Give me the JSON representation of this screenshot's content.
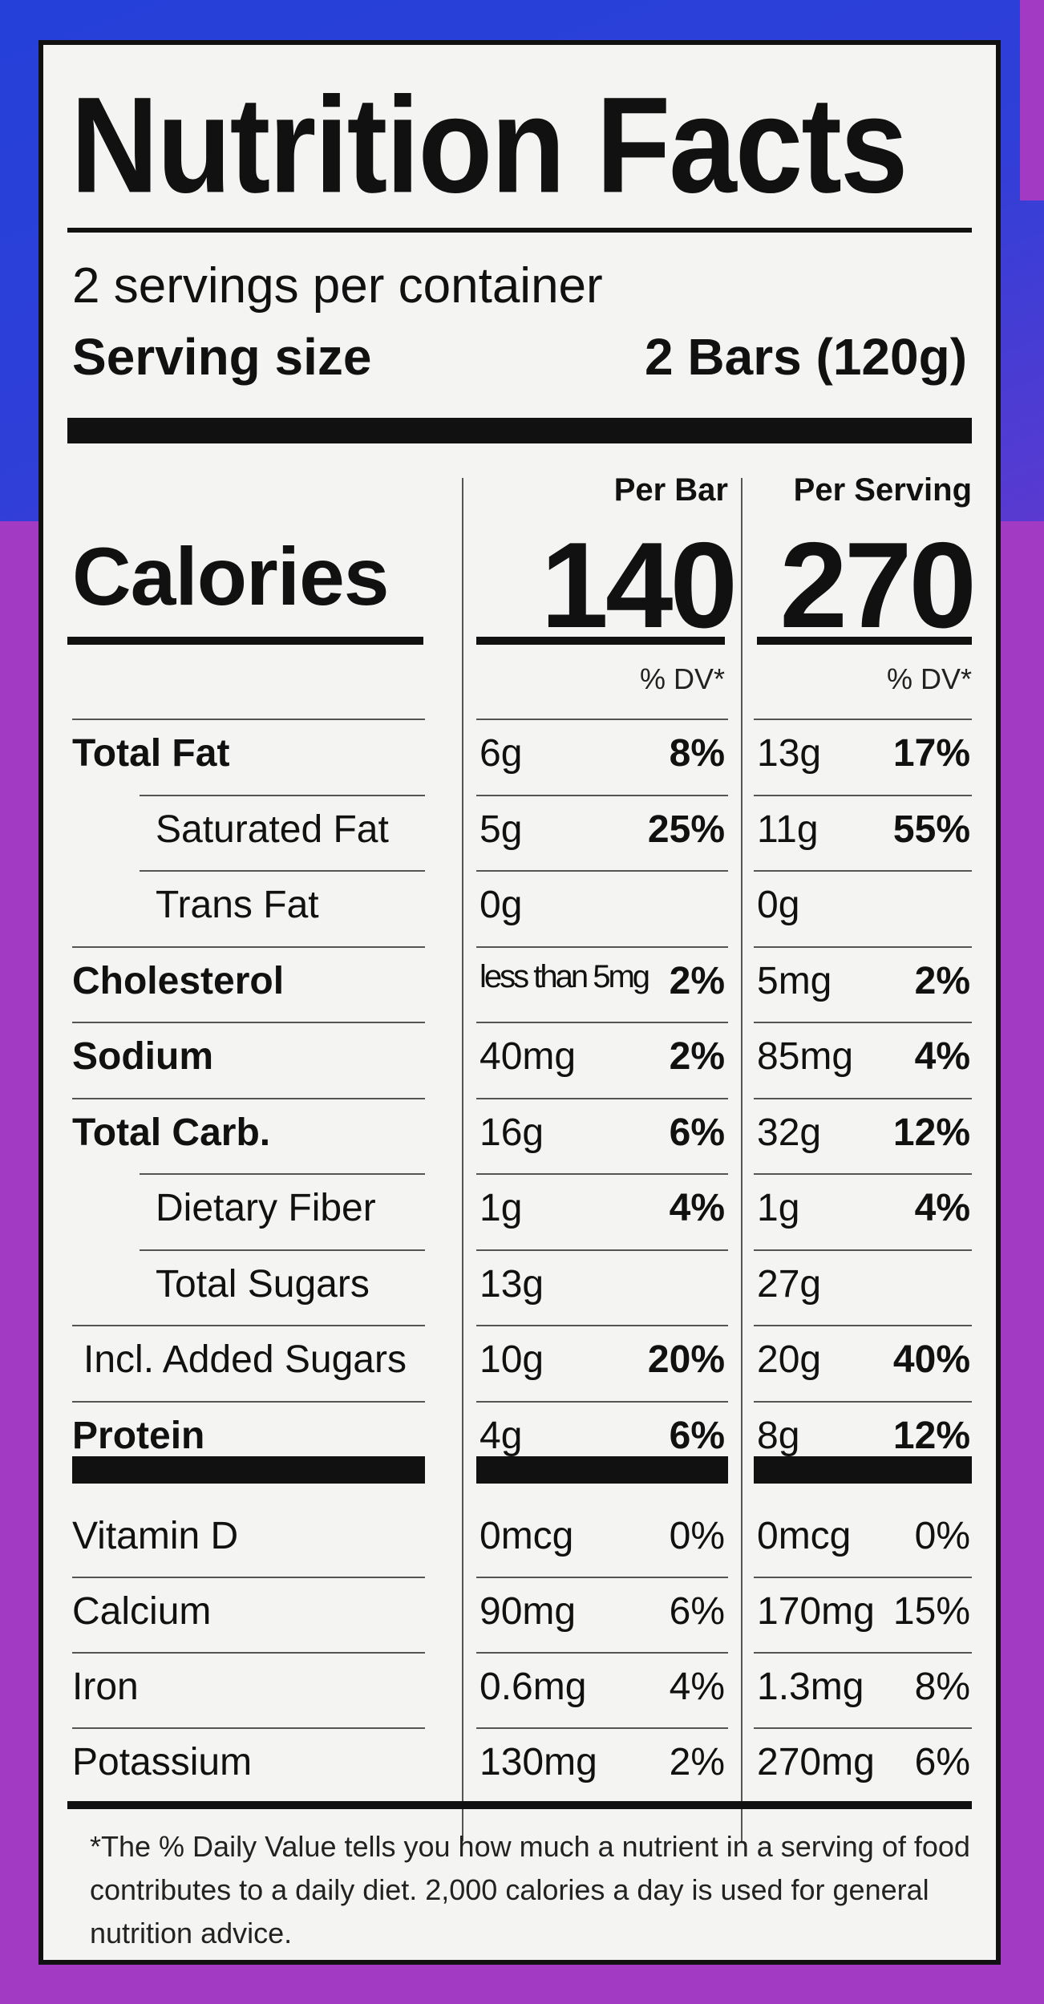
{
  "title": "Nutrition Facts",
  "servings_per_container": "2 servings per container",
  "serving_size_label": "Serving size",
  "serving_size_value": "2 Bars (120g)",
  "col_per_bar": "Per Bar",
  "col_per_serving": "Per Serving",
  "calories_label": "Calories",
  "calories_per_bar": "140",
  "calories_per_serving": "270",
  "dv_header": "% DV*",
  "nutrients": [
    {
      "label": "Total Fat",
      "bar_amt": "6g",
      "bar_pct": "8%",
      "srv_amt": "13g",
      "srv_pct": "17%"
    },
    {
      "label": "Saturated Fat",
      "bar_amt": "5g",
      "bar_pct": "25%",
      "srv_amt": "11g",
      "srv_pct": "55%"
    },
    {
      "label": "Trans Fat",
      "bar_amt": "0g",
      "bar_pct": "",
      "srv_amt": "0g",
      "srv_pct": ""
    },
    {
      "label": "Cholesterol",
      "bar_amt": "less than 5mg",
      "bar_pct": "2%",
      "srv_amt": "5mg",
      "srv_pct": "2%"
    },
    {
      "label": "Sodium",
      "bar_amt": "40mg",
      "bar_pct": "2%",
      "srv_amt": "85mg",
      "srv_pct": "4%"
    },
    {
      "label": "Total Carb.",
      "bar_amt": "16g",
      "bar_pct": "6%",
      "srv_amt": "32g",
      "srv_pct": "12%"
    },
    {
      "label": "Dietary Fiber",
      "bar_amt": "1g",
      "bar_pct": "4%",
      "srv_amt": "1g",
      "srv_pct": "4%"
    },
    {
      "label": "Total Sugars",
      "bar_amt": "13g",
      "bar_pct": "",
      "srv_amt": "27g",
      "srv_pct": ""
    },
    {
      "label": "Incl. Added Sugars",
      "bar_amt": "10g",
      "bar_pct": "20%",
      "srv_amt": "20g",
      "srv_pct": "40%"
    },
    {
      "label": "Protein",
      "bar_amt": "4g",
      "bar_pct": "6%",
      "srv_amt": "8g",
      "srv_pct": "12%"
    }
  ],
  "vitamins": [
    {
      "label": "Vitamin D",
      "bar_amt": "0mcg",
      "bar_pct": "0%",
      "srv_amt": "0mcg",
      "srv_pct": "0%"
    },
    {
      "label": "Calcium",
      "bar_amt": "90mg",
      "bar_pct": "6%",
      "srv_amt": "170mg",
      "srv_pct": "15%"
    },
    {
      "label": "Iron",
      "bar_amt": "0.6mg",
      "bar_pct": "4%",
      "srv_amt": "1.3mg",
      "srv_pct": "8%"
    },
    {
      "label": "Potassium",
      "bar_amt": "130mg",
      "bar_pct": "2%",
      "srv_amt": "270mg",
      "srv_pct": "6%"
    }
  ],
  "footnote": "*The % Daily Value tells you how much a nutrient in a serving of food contributes to a daily diet. 2,000 calories a day is used for general nutrition advice."
}
